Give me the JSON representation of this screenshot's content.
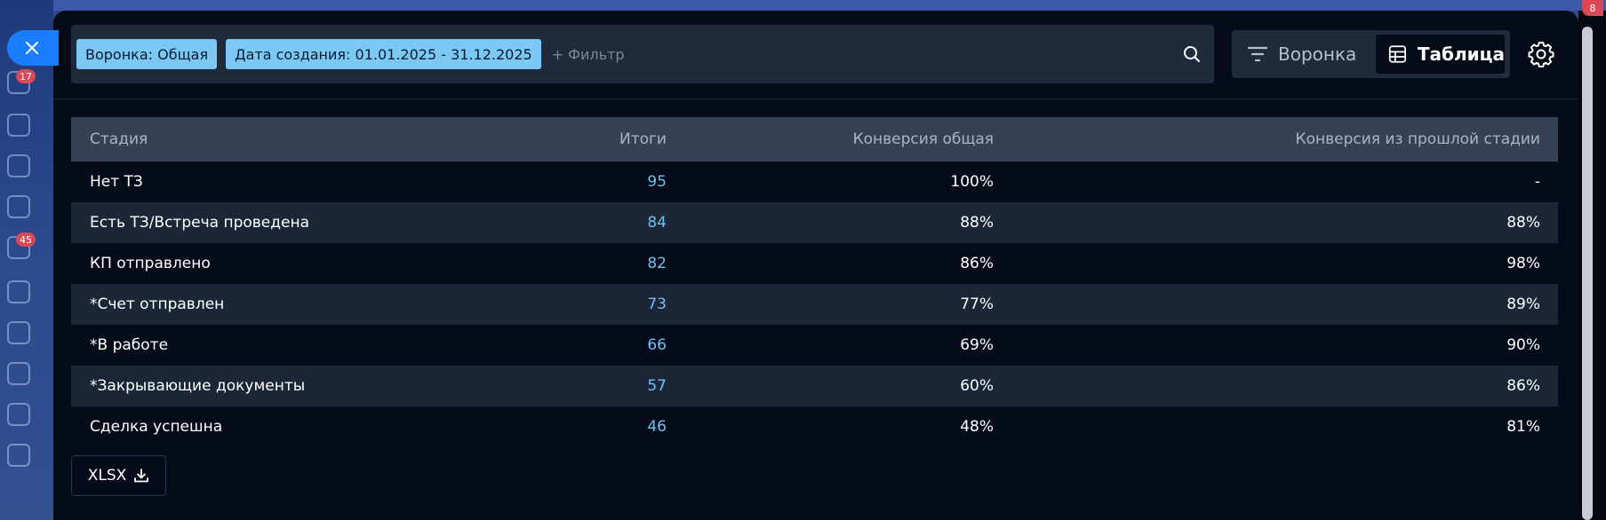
{
  "background": {
    "rail_badges": [
      "17",
      "45"
    ],
    "corner_badge": "8"
  },
  "filters": {
    "chips": [
      {
        "label": "Воронка: Общая"
      },
      {
        "label": "Дата создания: 01.01.2025 - 31.12.2025"
      }
    ],
    "add_filter": "+ Фильтр"
  },
  "view_toggle": {
    "funnel_label": "Воронка",
    "table_label": "Таблица",
    "active": "table"
  },
  "table": {
    "headers": {
      "stage": "Стадия",
      "total": "Итоги",
      "conv_total": "Конверсия общая",
      "conv_prev": "Конверсия из прошлой стадии"
    },
    "rows": [
      {
        "stage": "Нет ТЗ",
        "total": "95",
        "conv_total": "100%",
        "conv_prev": "-"
      },
      {
        "stage": "Есть ТЗ/Встреча проведена",
        "total": "84",
        "conv_total": "88%",
        "conv_prev": "88%"
      },
      {
        "stage": "КП отправлено",
        "total": "82",
        "conv_total": "86%",
        "conv_prev": "98%"
      },
      {
        "stage": "*Счет отправлен",
        "total": "73",
        "conv_total": "77%",
        "conv_prev": "89%"
      },
      {
        "stage": "*В работе",
        "total": "66",
        "conv_total": "69%",
        "conv_prev": "90%"
      },
      {
        "stage": "*Закрывающие документы",
        "total": "57",
        "conv_total": "60%",
        "conv_prev": "86%"
      },
      {
        "stage": "Сделка успешна",
        "total": "46",
        "conv_total": "48%",
        "conv_prev": "81%"
      }
    ]
  },
  "export": {
    "label": "XLSX"
  },
  "colors": {
    "accent": "#1a7cff",
    "chip": "#7cc8f5",
    "value": "#6fc0f3",
    "modal_bg": "#050b18"
  }
}
